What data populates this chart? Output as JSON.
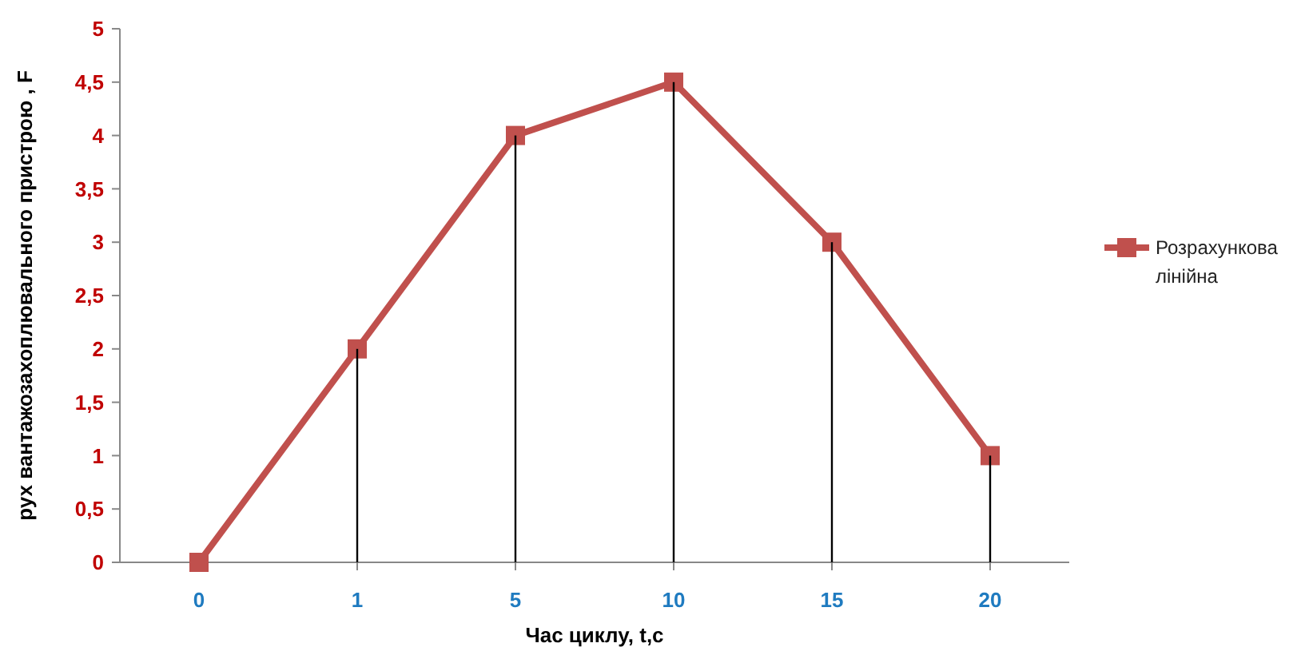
{
  "chart_data": {
    "type": "line",
    "xlabel": "Час циклу, t,c",
    "ylabel": "рух вантажозахоплювального пристрою , F",
    "categories": [
      "0",
      "1",
      "5",
      "10",
      "15",
      "20"
    ],
    "series": [
      {
        "name": "Розрахункова лінійна",
        "color": "#c0504d",
        "values": [
          0,
          2,
          4,
          4.5,
          3,
          1
        ]
      },
      {
        "type": "bar",
        "color": "#000000",
        "values": [
          0,
          2,
          4,
          4.5,
          3,
          1
        ]
      }
    ],
    "ylim": [
      0,
      5
    ],
    "yticks": [
      0,
      {
        "value": 0.5,
        "label": "0,5"
      },
      1,
      {
        "value": 1.5,
        "label": "1,5"
      },
      2,
      {
        "value": 2.5,
        "label": "2,5"
      },
      3,
      {
        "value": 3.5,
        "label": "3,5"
      },
      4,
      {
        "value": 4.5,
        "label": "4,5"
      },
      5
    ],
    "marker": "square",
    "legend": "right",
    "grid": false
  }
}
